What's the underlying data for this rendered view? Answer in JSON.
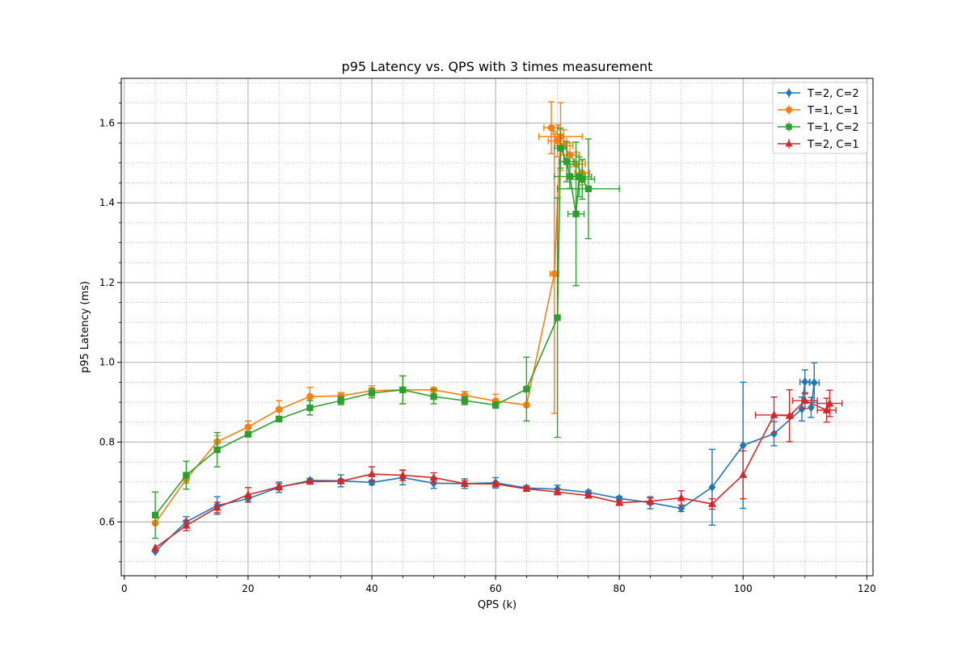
{
  "chart_data": {
    "type": "line",
    "title": "p95 Latency vs. QPS with 3 times measurement",
    "xlabel": "QPS (k)",
    "ylabel": "p95 Latency (ms)",
    "xlim": [
      -0.5,
      121
    ],
    "ylim": [
      0.465,
      1.712
    ],
    "xticks": [
      0,
      20,
      40,
      60,
      80,
      100,
      120
    ],
    "yticks": [
      0.6,
      0.8,
      1.0,
      1.2,
      1.4,
      1.6
    ],
    "grid": true,
    "legend_position": "upper-right",
    "series": [
      {
        "name": "T=2, C=2",
        "color": "#1f77b4",
        "marker": "diamond",
        "points": [
          {
            "x": 5,
            "y": 0.526
          },
          {
            "x": 10,
            "y": 0.6,
            "yerr": 0.013
          },
          {
            "x": 15,
            "y": 0.641,
            "yerr": 0.022
          },
          {
            "x": 20,
            "y": 0.658,
            "yerr": 0.008
          },
          {
            "x": 25,
            "y": 0.687,
            "yerr": 0.013
          },
          {
            "x": 30,
            "y": 0.704,
            "yerr": 0.005
          },
          {
            "x": 35,
            "y": 0.703,
            "yerr": 0.015
          },
          {
            "x": 40,
            "y": 0.699,
            "yerr": 0.006
          },
          {
            "x": 45,
            "y": 0.711,
            "yerr": 0.018
          },
          {
            "x": 50,
            "y": 0.697,
            "yerr": 0.013
          },
          {
            "x": 55,
            "y": 0.696,
            "yerr": 0.012
          },
          {
            "x": 60,
            "y": 0.698,
            "yerr": 0.013
          },
          {
            "x": 65,
            "y": 0.685,
            "yerr": 0.006
          },
          {
            "x": 70,
            "y": 0.682,
            "yerr": 0.01
          },
          {
            "x": 75,
            "y": 0.674,
            "yerr": 0.005
          },
          {
            "x": 80,
            "y": 0.659,
            "yerr": 0.005
          },
          {
            "x": 85,
            "y": 0.648,
            "yerr": 0.015
          },
          {
            "x": 90,
            "y": 0.634,
            "yerr": 0.008
          },
          {
            "x": 95,
            "y": 0.687,
            "yerr": 0.095
          },
          {
            "x": 100,
            "y": 0.792,
            "yerr": 0.158
          },
          {
            "x": 105,
            "y": 0.821,
            "yerr": 0.03
          },
          {
            "x": 109.5,
            "y": 0.883,
            "yerr": 0.03
          },
          {
            "x": 110,
            "y": 0.951,
            "yerr": 0.03,
            "xerr": 0.8
          },
          {
            "x": 111.5,
            "y": 0.949,
            "yerr": 0.05,
            "xerr": 0.8
          },
          {
            "x": 111,
            "y": 0.887,
            "yerr": 0.025
          }
        ]
      },
      {
        "name": "T=1, C=1",
        "color": "#ff7f0e",
        "marker": "circle",
        "points": [
          {
            "x": 5,
            "y": 0.597
          },
          {
            "x": 10,
            "y": 0.707,
            "yerr": 0.01
          },
          {
            "x": 15,
            "y": 0.801,
            "yerr": 0.015
          },
          {
            "x": 20,
            "y": 0.838,
            "yerr": 0.015
          },
          {
            "x": 25,
            "y": 0.882,
            "yerr": 0.022
          },
          {
            "x": 30,
            "y": 0.914,
            "yerr": 0.023
          },
          {
            "x": 35,
            "y": 0.916,
            "yerr": 0.008
          },
          {
            "x": 40,
            "y": 0.929,
            "yerr": 0.012
          },
          {
            "x": 45,
            "y": 0.931,
            "yerr": 0.035
          },
          {
            "x": 50,
            "y": 0.931,
            "yerr": 0.005
          },
          {
            "x": 55,
            "y": 0.917,
            "yerr": 0.01
          },
          {
            "x": 60,
            "y": 0.903,
            "yerr": 0.017
          },
          {
            "x": 65,
            "y": 0.893
          },
          {
            "x": 69.5,
            "y": 1.222,
            "yerr": 0.35,
            "xerr": 0.7
          },
          {
            "x": 70.5,
            "y": 1.566,
            "yerr": 0.085,
            "xerr": 3.5
          },
          {
            "x": 69,
            "y": 1.588,
            "yerr": 0.065,
            "xerr": 1.2
          },
          {
            "x": 70,
            "y": 1.555,
            "yerr": 0.04,
            "xerr": 1.5
          },
          {
            "x": 71,
            "y": 1.543,
            "yerr": 0.04,
            "xerr": 1.5
          },
          {
            "x": 72,
            "y": 1.52,
            "yerr": 0.03,
            "xerr": 1.5
          },
          {
            "x": 73,
            "y": 1.497,
            "yerr": 0.03,
            "xerr": 1.5
          },
          {
            "x": 74,
            "y": 1.475,
            "yerr": 0.03,
            "xerr": 1.2
          }
        ]
      },
      {
        "name": "T=1, C=2",
        "color": "#2ca02c",
        "marker": "square",
        "points": [
          {
            "x": 5,
            "y": 0.617,
            "yerr": 0.058
          },
          {
            "x": 10,
            "y": 0.717,
            "yerr": 0.035
          },
          {
            "x": 15,
            "y": 0.781,
            "yerr": 0.043
          },
          {
            "x": 20,
            "y": 0.82,
            "yerr": 0.007
          },
          {
            "x": 25,
            "y": 0.858,
            "yerr": 0.005
          },
          {
            "x": 30,
            "y": 0.886,
            "yerr": 0.018
          },
          {
            "x": 35,
            "y": 0.904,
            "yerr": 0.01
          },
          {
            "x": 40,
            "y": 0.923,
            "yerr": 0.012
          },
          {
            "x": 45,
            "y": 0.931,
            "yerr": 0.035
          },
          {
            "x": 50,
            "y": 0.914,
            "yerr": 0.018
          },
          {
            "x": 55,
            "y": 0.904,
            "yerr": 0.01
          },
          {
            "x": 60,
            "y": 0.893,
            "yerr": 0.008
          },
          {
            "x": 65,
            "y": 0.933,
            "yerr": 0.08
          },
          {
            "x": 70,
            "y": 1.112,
            "yerr": 0.3
          },
          {
            "x": 70.5,
            "y": 1.537,
            "yerr": 0.05,
            "xerr": 1.0
          },
          {
            "x": 71.5,
            "y": 1.503,
            "yerr": 0.05,
            "xerr": 1.2
          },
          {
            "x": 72,
            "y": 1.466,
            "yerr": 0.03,
            "xerr": 2.5
          },
          {
            "x": 73,
            "y": 1.372,
            "yerr": 0.18,
            "xerr": 1.3
          },
          {
            "x": 73.5,
            "y": 1.465,
            "yerr": 0.05,
            "xerr": 2.0
          },
          {
            "x": 74,
            "y": 1.459,
            "yerr": 0.05,
            "xerr": 2.0
          },
          {
            "x": 75,
            "y": 1.435,
            "yerr": 0.125,
            "xerr": 5.0
          }
        ]
      },
      {
        "name": "T=2, C=1",
        "color": "#d62728",
        "marker": "triangle",
        "points": [
          {
            "x": 5,
            "y": 0.535
          },
          {
            "x": 10,
            "y": 0.591,
            "yerr": 0.013
          },
          {
            "x": 15,
            "y": 0.636,
            "yerr": 0.013
          },
          {
            "x": 20,
            "y": 0.668,
            "yerr": 0.018
          },
          {
            "x": 25,
            "y": 0.688,
            "yerr": 0.008
          },
          {
            "x": 30,
            "y": 0.701,
            "yerr": 0.005
          },
          {
            "x": 35,
            "y": 0.702,
            "yerr": 0.005
          },
          {
            "x": 40,
            "y": 0.72,
            "yerr": 0.018
          },
          {
            "x": 45,
            "y": 0.717,
            "yerr": 0.013
          },
          {
            "x": 50,
            "y": 0.711,
            "yerr": 0.012
          },
          {
            "x": 55,
            "y": 0.696,
            "yerr": 0.007
          },
          {
            "x": 60,
            "y": 0.695,
            "yerr": 0.005
          },
          {
            "x": 65,
            "y": 0.683,
            "yerr": 0.005
          },
          {
            "x": 70,
            "y": 0.675,
            "yerr": 0.007
          },
          {
            "x": 75,
            "y": 0.666,
            "yerr": 0.005
          },
          {
            "x": 80,
            "y": 0.648,
            "yerr": 0.005
          },
          {
            "x": 85,
            "y": 0.652,
            "yerr": 0.008
          },
          {
            "x": 90,
            "y": 0.66,
            "yerr": 0.018
          },
          {
            "x": 95,
            "y": 0.645,
            "yerr": 0.013
          },
          {
            "x": 100,
            "y": 0.718,
            "yerr": 0.06
          },
          {
            "x": 105,
            "y": 0.868,
            "yerr": 0.045,
            "xerr": 3.0
          },
          {
            "x": 107.5,
            "y": 0.866,
            "yerr": 0.065
          },
          {
            "x": 110,
            "y": 0.904,
            "yerr": 0.02,
            "xerr": 2.0
          },
          {
            "x": 113.5,
            "y": 0.88,
            "yerr": 0.03,
            "xerr": 1.5
          },
          {
            "x": 114,
            "y": 0.897,
            "yerr": 0.033,
            "xerr": 2.0
          }
        ]
      }
    ]
  }
}
